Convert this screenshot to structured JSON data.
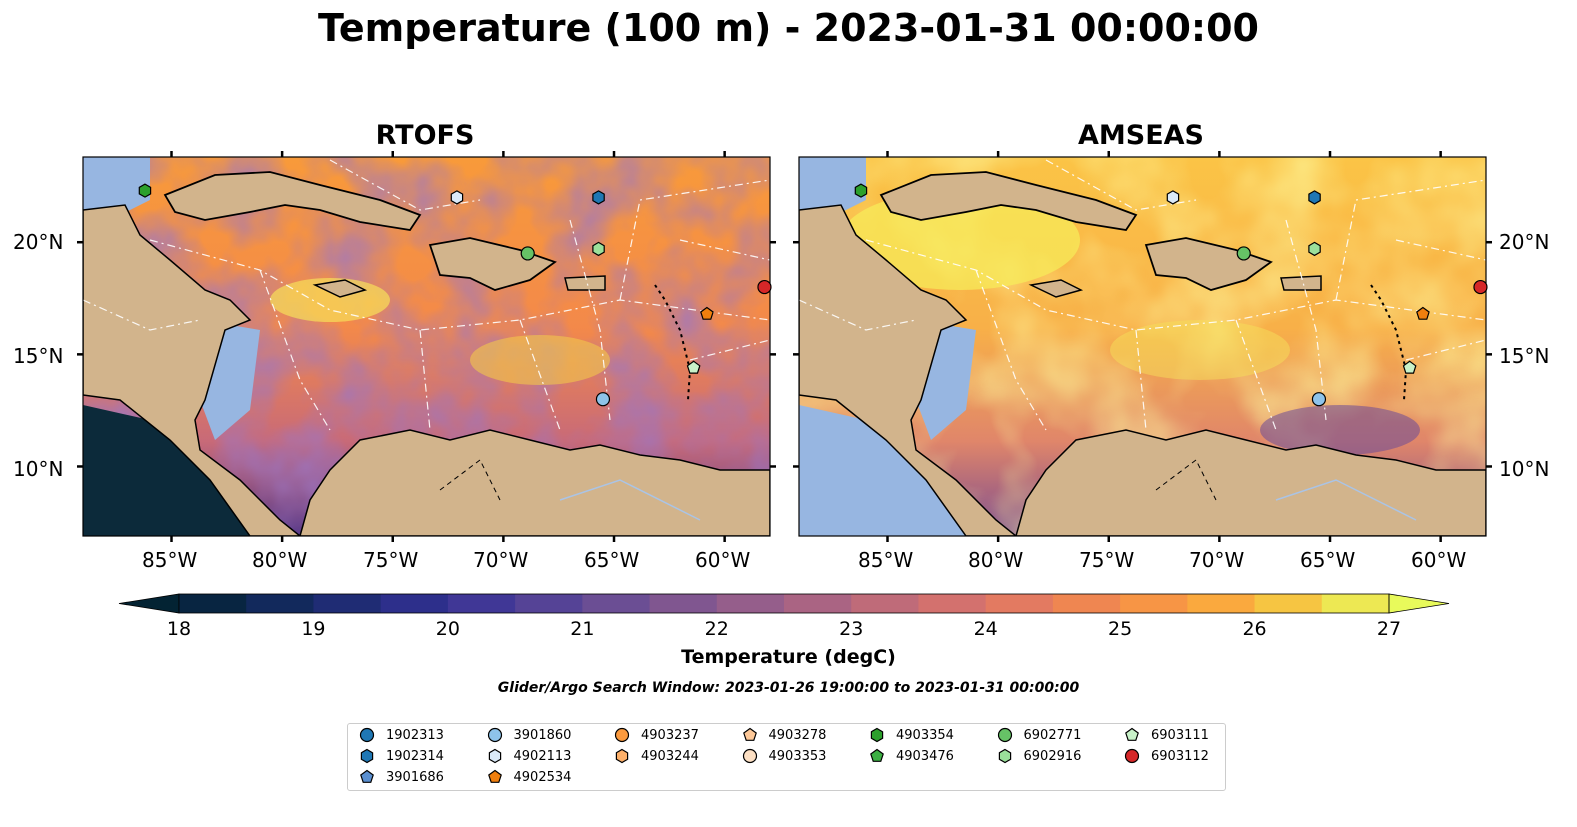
{
  "title": "Temperature (100 m) - 2023-01-31 00:00:00",
  "panels": [
    {
      "name": "RTOFS"
    },
    {
      "name": "AMSEAS"
    }
  ],
  "lon_ticks": [
    "85°W",
    "80°W",
    "75°W",
    "70°W",
    "65°W",
    "60°W"
  ],
  "lat_ticks": [
    "20°N",
    "15°N",
    "10°N"
  ],
  "colorbar": {
    "label": "Temperature (degC)",
    "ticks": [
      "18",
      "19",
      "20",
      "21",
      "22",
      "23",
      "24",
      "25",
      "26",
      "27"
    ],
    "min": 18,
    "max": 27,
    "step": 0.5,
    "colormap": "thermal",
    "extend": "both"
  },
  "search_window": "Glider/Argo Search Window: 2023-01-26 19:00:00 to 2023-01-31 00:00:00",
  "colors": {
    "land": "#d2b48c",
    "shallow_water": "#97b6e1",
    "coastline": "#000000",
    "eez_lines": "#ffffff"
  },
  "floats": [
    {
      "id": "1902313",
      "marker": "circle",
      "color": "#1f77b4"
    },
    {
      "id": "1902314",
      "marker": "hexagon",
      "color": "#1f77b4"
    },
    {
      "id": "3901686",
      "marker": "pentagon",
      "color": "#5a8fd0"
    },
    {
      "id": "3901860",
      "marker": "circle",
      "color": "#8ec3ea"
    },
    {
      "id": "4902113",
      "marker": "hexagon",
      "color": "#dbeaf8"
    },
    {
      "id": "4902534",
      "marker": "pentagon",
      "color": "#f07f0e"
    },
    {
      "id": "4903237",
      "marker": "circle",
      "color": "#fb9a3e"
    },
    {
      "id": "4903244",
      "marker": "hexagon",
      "color": "#fdb06a"
    },
    {
      "id": "4903278",
      "marker": "pentagon",
      "color": "#fdc898"
    },
    {
      "id": "4903353",
      "marker": "circle",
      "color": "#fde0c4"
    },
    {
      "id": "4903354",
      "marker": "hexagon",
      "color": "#2ca02c"
    },
    {
      "id": "4903476",
      "marker": "pentagon",
      "color": "#3cb043"
    },
    {
      "id": "6902771",
      "marker": "circle",
      "color": "#66c266"
    },
    {
      "id": "6902916",
      "marker": "hexagon",
      "color": "#9be09b"
    },
    {
      "id": "6903111",
      "marker": "pentagon",
      "color": "#c9f2c9"
    },
    {
      "id": "6903112",
      "marker": "circle",
      "color": "#d62728"
    }
  ],
  "observations": [
    {
      "id": "1902314",
      "lon": -65.7,
      "lat": 22.0
    },
    {
      "id": "4902113",
      "lon": -72.1,
      "lat": 22.0
    },
    {
      "id": "4903354",
      "lon": -86.2,
      "lat": 22.3
    },
    {
      "id": "6902771",
      "lon": -68.9,
      "lat": 19.5
    },
    {
      "id": "6902916",
      "lon": -65.7,
      "lat": 19.7
    },
    {
      "id": "6903112",
      "lon": -58.2,
      "lat": 18.0
    },
    {
      "id": "4902534",
      "lon": -60.8,
      "lat": 16.8
    },
    {
      "id": "6903111",
      "lon": -61.4,
      "lat": 14.4
    },
    {
      "id": "3901860",
      "lon": -65.5,
      "lat": 13.0
    }
  ]
}
